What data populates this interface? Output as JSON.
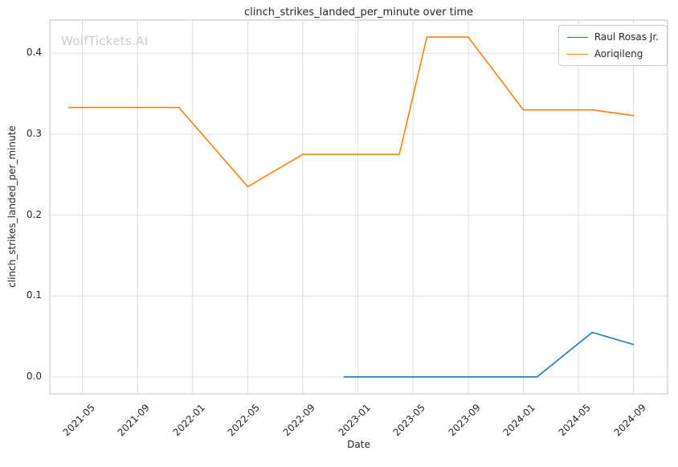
{
  "watermark": {
    "text": "WolfTickets.AI"
  },
  "chart_data": {
    "type": "line",
    "title": "clinch_strikes_landed_per_minute over time",
    "xlabel": "Date",
    "ylabel": "clinch_strikes_landed_per_minute",
    "grid": true,
    "legend_position": "upper right",
    "x_ticks": [
      "2021-05",
      "2021-09",
      "2022-01",
      "2022-05",
      "2022-09",
      "2023-01",
      "2023-05",
      "2023-09",
      "2024-01",
      "2024-05",
      "2024-09"
    ],
    "y_ticks": [
      {
        "value": 0.0,
        "label": "0.0"
      },
      {
        "value": 0.1,
        "label": "0.1"
      },
      {
        "value": 0.2,
        "label": "0.2"
      },
      {
        "value": 0.3,
        "label": "0.3"
      },
      {
        "value": 0.4,
        "label": "0.4"
      }
    ],
    "xlim": [
      "2021-02-20",
      "2024-11-15"
    ],
    "ylim": [
      -0.021,
      0.441
    ],
    "series": [
      {
        "name": "Raul Rosas Jr.",
        "color": "#1f77b4",
        "x": [
          "2022-12",
          "2023-04",
          "2023-09",
          "2024-02",
          "2024-06",
          "2024-09"
        ],
        "values": [
          0.0,
          0.0,
          0.0,
          0.0,
          0.055,
          0.04
        ]
      },
      {
        "name": "Aoriqileng",
        "color": "#ff7f0e",
        "x": [
          "2021-04",
          "2021-12",
          "2022-05",
          "2022-09",
          "2023-04",
          "2023-06",
          "2023-09",
          "2024-01",
          "2024-06",
          "2024-09"
        ],
        "values": [
          0.333,
          0.333,
          0.235,
          0.275,
          0.275,
          0.42,
          0.42,
          0.33,
          0.33,
          0.323
        ]
      }
    ]
  }
}
